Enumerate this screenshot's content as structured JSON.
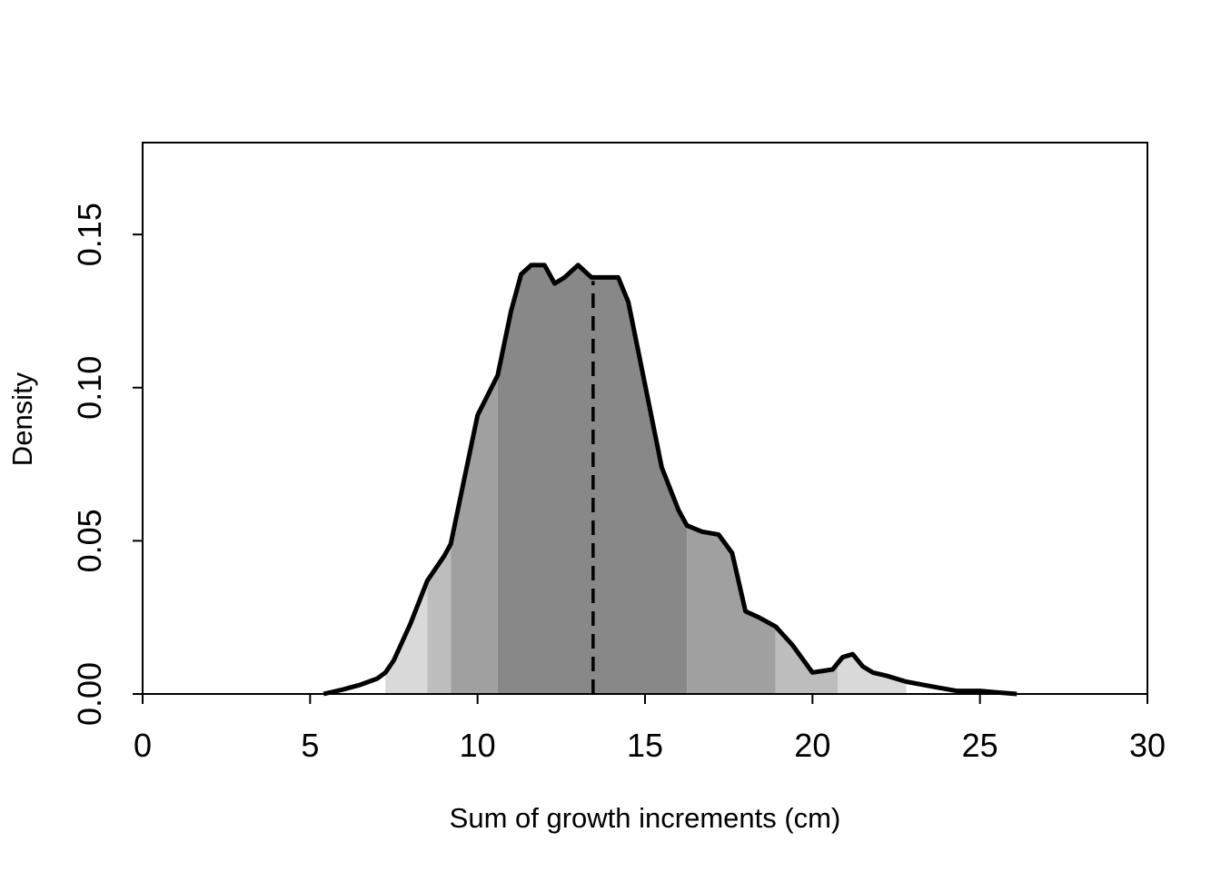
{
  "chart_data": {
    "type": "area",
    "title": "",
    "xlabel": "Sum of growth increments (cm)",
    "ylabel": "Density",
    "xlim": [
      0,
      30
    ],
    "ylim": [
      0,
      0.18
    ],
    "x_ticks": [
      "0",
      "5",
      "10",
      "15",
      "20",
      "25",
      "30"
    ],
    "y_ticks": [
      "0.00",
      "0.05",
      "0.10",
      "0.15"
    ],
    "grid": false,
    "legend": "none",
    "median_line": {
      "x": 13.45,
      "style": "dashed"
    },
    "shaded_bands": [
      {
        "from": 7.25,
        "to": 8.5,
        "color": "#d9d9d9"
      },
      {
        "from": 8.5,
        "to": 9.2,
        "color": "#bdbdbd"
      },
      {
        "from": 9.2,
        "to": 10.6,
        "color": "#a0a0a0"
      },
      {
        "from": 10.6,
        "to": 16.25,
        "color": "#888888"
      },
      {
        "from": 16.25,
        "to": 18.9,
        "color": "#a0a0a0"
      },
      {
        "from": 18.9,
        "to": 20.75,
        "color": "#bdbdbd"
      },
      {
        "from": 20.75,
        "to": 22.8,
        "color": "#d9d9d9"
      }
    ],
    "series": [
      {
        "x": [
          5.4,
          6.0,
          6.5,
          7.0,
          7.25,
          7.5,
          8.0,
          8.5,
          9.0,
          9.2,
          9.6,
          10.0,
          10.6,
          11.0,
          11.3,
          11.6,
          12.0,
          12.3,
          12.6,
          13.0,
          13.4,
          13.8,
          14.2,
          14.5,
          15.0,
          15.5,
          16.0,
          16.25,
          16.7,
          17.2,
          17.6,
          18.0,
          18.4,
          18.9,
          19.4,
          20.0,
          20.6,
          20.9,
          21.2,
          21.5,
          21.8,
          22.2,
          22.8,
          23.3,
          23.8,
          24.3,
          25.0,
          25.5,
          26.1
        ],
        "y": [
          0.0,
          0.0015,
          0.003,
          0.005,
          0.007,
          0.011,
          0.023,
          0.037,
          0.045,
          0.049,
          0.07,
          0.091,
          0.104,
          0.125,
          0.137,
          0.14,
          0.14,
          0.134,
          0.136,
          0.14,
          0.136,
          0.136,
          0.136,
          0.128,
          0.101,
          0.074,
          0.06,
          0.055,
          0.053,
          0.052,
          0.046,
          0.027,
          0.025,
          0.022,
          0.016,
          0.007,
          0.008,
          0.012,
          0.013,
          0.009,
          0.007,
          0.006,
          0.004,
          0.003,
          0.002,
          0.001,
          0.001,
          0.0005,
          0.0
        ]
      }
    ]
  }
}
